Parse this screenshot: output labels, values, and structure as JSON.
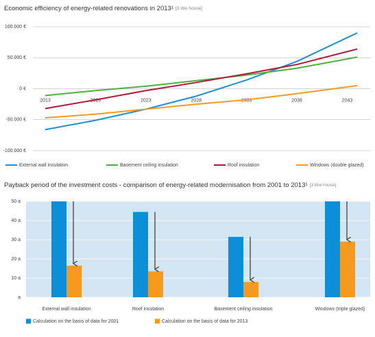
{
  "chart_data": [
    {
      "type": "line",
      "title": "Economic efficiency of energy-related renovations in 2013¹",
      "subtitle": "[3 litre house]",
      "x": [
        2013,
        2018,
        2023,
        2028,
        2033,
        2038,
        2044
      ],
      "xlim": [
        2013,
        2044.4
      ],
      "xticks": [
        2013,
        2018,
        2023,
        2028,
        2033,
        2038,
        2043
      ],
      "ylim": [
        -100000,
        100000
      ],
      "yticks": [
        {
          "value": 100000,
          "label": "100.000 €"
        },
        {
          "value": 50000,
          "label": "50.000 €"
        },
        {
          "value": 0,
          "label": "0 €"
        },
        {
          "value": -50000,
          "label": "-50.000 €"
        },
        {
          "value": -100000,
          "label": "-100.000 €"
        }
      ],
      "grid": true,
      "series": [
        {
          "name": "External wall insulation",
          "color": "#1a8fd6",
          "values": [
            -66000,
            -51000,
            -33000,
            -12000,
            14000,
            44000,
            90000
          ]
        },
        {
          "name": "Basement ceiling insulation",
          "color": "#4caf3e",
          "values": [
            -11000,
            -3000,
            4000,
            13000,
            22000,
            33000,
            51000
          ]
        },
        {
          "name": "Roof insulation",
          "color": "#b5173a",
          "values": [
            -32000,
            -18000,
            -3000,
            10000,
            24000,
            39000,
            64000
          ]
        },
        {
          "name": "Windows (double glazed)",
          "color": "#f39a1e",
          "values": [
            -47000,
            -41000,
            -33000,
            -25000,
            -18000,
            -8000,
            5000
          ]
        }
      ]
    },
    {
      "type": "bar",
      "title": "Payback period of the investment costs - comparison of energy-related modernisation from 2001 to 2013¹",
      "subtitle": "[3 litre house]",
      "categories": [
        "External wall insulation",
        "Roof insulation",
        "Basement ceiling insulation",
        "Windows (triple glazed)"
      ],
      "ylim": [
        0,
        50
      ],
      "yticks": [
        {
          "value": 0,
          "label": "a"
        },
        {
          "value": 10,
          "label": "10 a"
        },
        {
          "value": 20,
          "label": "20 a"
        },
        {
          "value": 30,
          "label": "30 a"
        },
        {
          "value": 40,
          "label": "40 a"
        },
        {
          "value": 50,
          "label": "50 a"
        }
      ],
      "grid": true,
      "series": [
        {
          "name": "Calculation on the basis of data for 2001",
          "color": "#0b8fd8",
          "values": [
            50,
            44.5,
            31.5,
            50
          ]
        },
        {
          "name": "Calculation on the basis of data for 2013",
          "color": "#f7991c",
          "values": [
            16.5,
            13.5,
            8,
            29
          ]
        }
      ]
    }
  ]
}
